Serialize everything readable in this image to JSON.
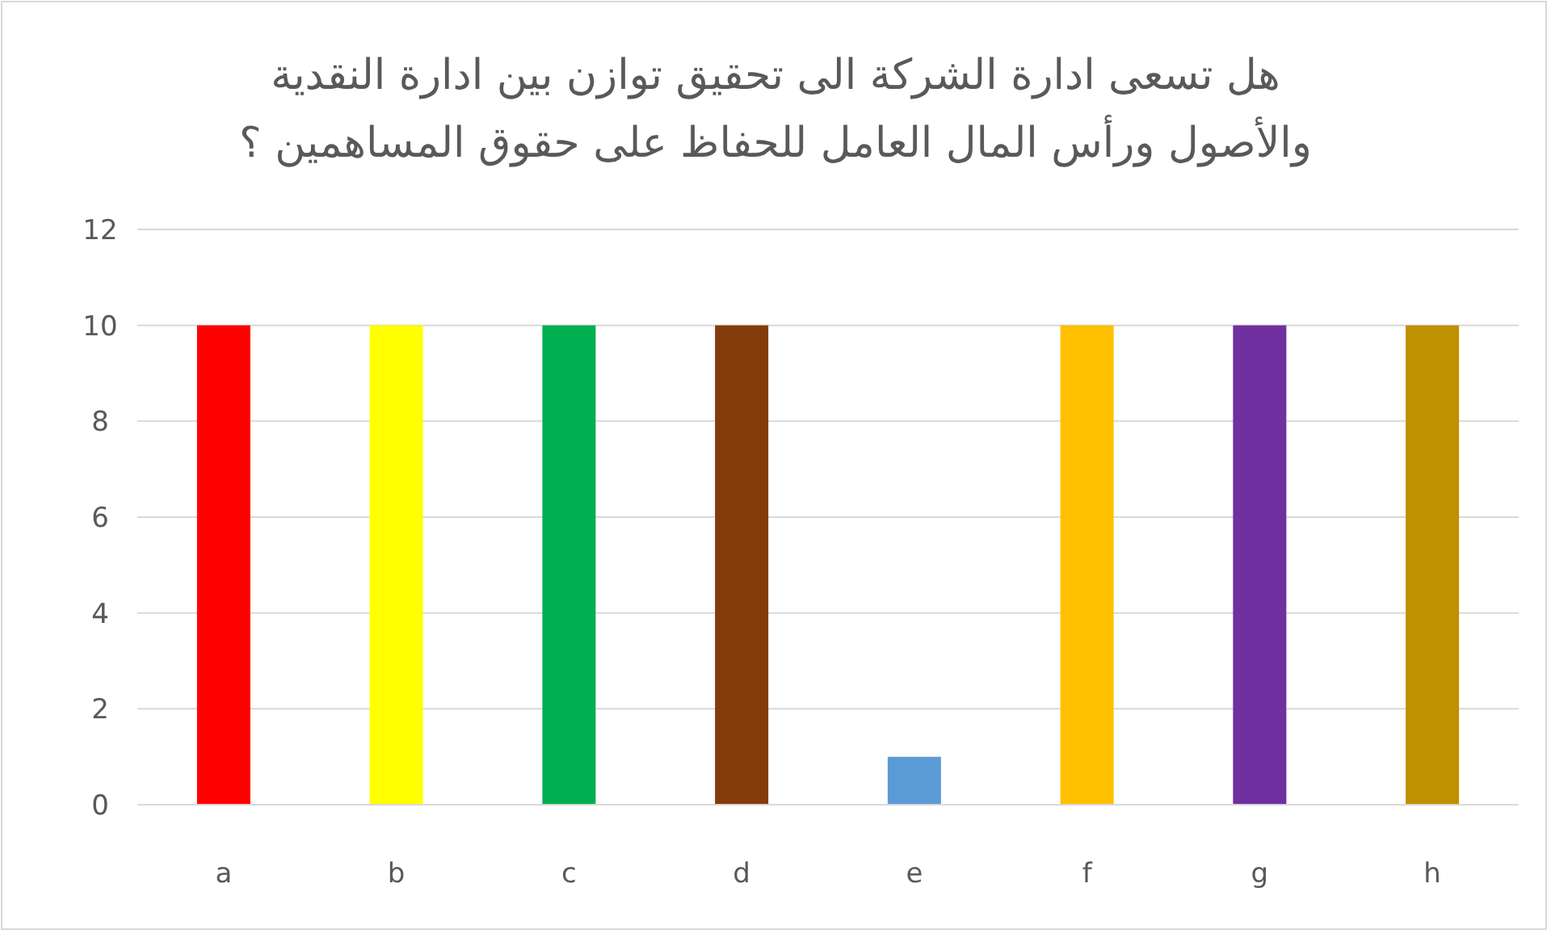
{
  "chart_data": {
    "type": "bar",
    "title": "هل تسعى ادارة الشركة الى تحقيق توازن بين ادارة النقدية\nوالأصول ورأس المال العامل للحفاظ على حقوق المساهمين ؟",
    "categories": [
      "a",
      "b",
      "c",
      "d",
      "e",
      "f",
      "g",
      "h"
    ],
    "values": [
      10,
      10,
      10,
      10,
      1,
      10,
      10,
      10
    ],
    "colors": [
      "#ff0000",
      "#ffff00",
      "#00b050",
      "#843c0c",
      "#5b9bd5",
      "#ffc000",
      "#7030a0",
      "#bf9000"
    ],
    "ylim": [
      0,
      12
    ],
    "yticks": [
      0,
      2,
      4,
      6,
      8,
      10,
      12
    ],
    "grid": "y"
  }
}
